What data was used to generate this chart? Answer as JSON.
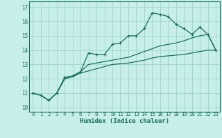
{
  "xlabel": "Humidex (Indice chaleur)",
  "xlim": [
    -0.5,
    23.5
  ],
  "ylim": [
    9.7,
    17.4
  ],
  "xticks": [
    0,
    1,
    2,
    3,
    4,
    5,
    6,
    7,
    8,
    9,
    10,
    11,
    12,
    13,
    14,
    15,
    16,
    17,
    18,
    19,
    20,
    21,
    22,
    23
  ],
  "yticks": [
    10,
    11,
    12,
    13,
    14,
    15,
    16,
    17
  ],
  "bg_color": "#c8eeea",
  "grid_color": "#a0d8d0",
  "line_color": "#1a7060",
  "line1_x": [
    0,
    1,
    2,
    3,
    4,
    5,
    6,
    7,
    8,
    9,
    10,
    11,
    12,
    13,
    14,
    15,
    16,
    17,
    18,
    19,
    20,
    21,
    22,
    23
  ],
  "line1_y": [
    11.0,
    10.85,
    10.5,
    11.0,
    12.1,
    12.2,
    12.5,
    13.8,
    13.7,
    13.7,
    14.4,
    14.5,
    15.0,
    15.0,
    15.5,
    16.6,
    16.5,
    16.35,
    15.8,
    15.5,
    15.1,
    15.6,
    15.1,
    14.0
  ],
  "line2_x": [
    0,
    1,
    2,
    3,
    4,
    5,
    6,
    7,
    8,
    9,
    10,
    11,
    12,
    13,
    14,
    15,
    16,
    17,
    18,
    19,
    20,
    21,
    22,
    23
  ],
  "line2_y": [
    11.0,
    10.85,
    10.5,
    11.0,
    12.0,
    12.15,
    12.4,
    12.55,
    12.7,
    12.85,
    13.0,
    13.05,
    13.1,
    13.2,
    13.3,
    13.45,
    13.55,
    13.6,
    13.65,
    13.7,
    13.8,
    13.9,
    14.0,
    14.0
  ],
  "line3_x": [
    0,
    1,
    2,
    3,
    4,
    5,
    6,
    7,
    8,
    9,
    10,
    11,
    12,
    13,
    14,
    15,
    16,
    17,
    18,
    19,
    20,
    21,
    22,
    23
  ],
  "line3_y": [
    11.0,
    10.85,
    10.5,
    11.0,
    12.0,
    12.2,
    12.5,
    13.0,
    13.1,
    13.2,
    13.3,
    13.4,
    13.5,
    13.7,
    13.9,
    14.1,
    14.3,
    14.4,
    14.5,
    14.65,
    14.85,
    15.0,
    15.1,
    14.0
  ]
}
